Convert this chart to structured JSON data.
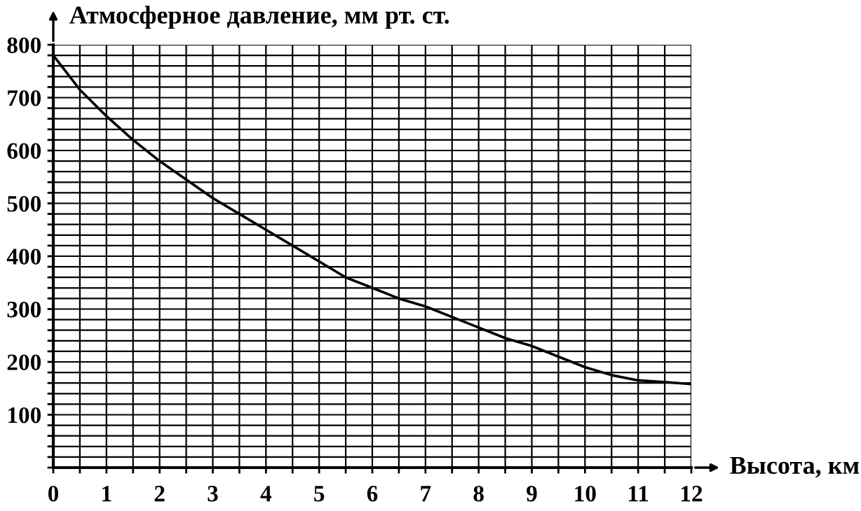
{
  "chart_data": {
    "type": "line",
    "ylabel": "Атмосферное давление, мм рт. ст.",
    "xlabel": "Высота, км",
    "x": [
      0,
      0.5,
      1,
      1.5,
      2,
      2.5,
      3,
      3.5,
      4,
      4.5,
      5,
      5.5,
      6,
      6.5,
      7,
      7.5,
      8,
      8.5,
      9,
      9.5,
      10,
      10.5,
      11,
      11.5,
      12
    ],
    "series": [
      {
        "color": "#000000",
        "values": [
          780,
          715,
          665,
          620,
          580,
          545,
          510,
          480,
          450,
          420,
          390,
          360,
          340,
          320,
          305,
          285,
          265,
          245,
          230,
          210,
          190,
          175,
          165,
          162,
          158
        ]
      }
    ],
    "xlim": [
      0,
      12
    ],
    "ylim": [
      0,
      800
    ],
    "xticks": [
      0,
      {
        "value": 0.5,
        "label": null
      },
      1,
      {
        "value": 1.5,
        "label": null
      },
      2,
      {
        "value": 2.5,
        "label": null
      },
      3,
      {
        "value": 3.5,
        "label": null
      },
      4,
      {
        "value": 4.5,
        "label": null
      },
      5,
      {
        "value": 5.5,
        "label": null
      },
      6,
      {
        "value": 6.5,
        "label": null
      },
      7,
      {
        "value": 7.5,
        "label": null
      },
      8,
      {
        "value": 8.5,
        "label": null
      },
      9,
      {
        "value": 9.5,
        "label": null
      },
      10,
      {
        "value": 10.5,
        "label": null
      },
      11,
      {
        "value": 11.5,
        "label": null
      },
      12
    ],
    "yticks": [
      {
        "value": 0,
        "label": null
      },
      {
        "value": 20,
        "label": null
      },
      {
        "value": 40,
        "label": null
      },
      {
        "value": 60,
        "label": null
      },
      {
        "value": 80,
        "label": null
      },
      100,
      {
        "value": 120,
        "label": null
      },
      {
        "value": 140,
        "label": null
      },
      {
        "value": 160,
        "label": null
      },
      {
        "value": 180,
        "label": null
      },
      200,
      {
        "value": 220,
        "label": null
      },
      {
        "value": 240,
        "label": null
      },
      {
        "value": 260,
        "label": null
      },
      {
        "value": 280,
        "label": null
      },
      300,
      {
        "value": 320,
        "label": null
      },
      {
        "value": 340,
        "label": null
      },
      {
        "value": 360,
        "label": null
      },
      {
        "value": 380,
        "label": null
      },
      400,
      {
        "value": 420,
        "label": null
      },
      {
        "value": 440,
        "label": null
      },
      {
        "value": 460,
        "label": null
      },
      {
        "value": 480,
        "label": null
      },
      500,
      {
        "value": 520,
        "label": null
      },
      {
        "value": 540,
        "label": null
      },
      {
        "value": 560,
        "label": null
      },
      {
        "value": 580,
        "label": null
      },
      600,
      {
        "value": 620,
        "label": null
      },
      {
        "value": 640,
        "label": null
      },
      {
        "value": 660,
        "label": null
      },
      {
        "value": 680,
        "label": null
      },
      700,
      {
        "value": 720,
        "label": null
      },
      {
        "value": 740,
        "label": null
      },
      {
        "value": 760,
        "label": null
      },
      {
        "value": 780,
        "label": null
      },
      800
    ],
    "grid": true,
    "marker": "none",
    "line_style": "solid",
    "legend": false
  }
}
